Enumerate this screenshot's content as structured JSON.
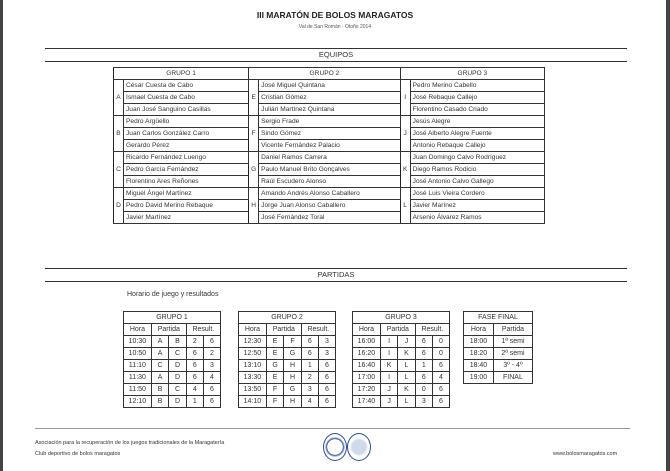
{
  "header": {
    "title": "III MARATÓN DE BOLOS MARAGATOS",
    "subtitle": "Val de San Román · Otoño 2014"
  },
  "equipos": {
    "section_label": "EQUIPOS",
    "groups": [
      {
        "name": "GRUPO 1",
        "teams": [
          {
            "letter": "A",
            "players": [
              "César Cuesta de Cabo",
              "Ismael Cuesta de Cabo",
              "Juan José Sanguino Casillas"
            ]
          },
          {
            "letter": "B",
            "players": [
              "Pedro Argüello",
              "Juan Carlos González Carro",
              "Gerardo Pérez"
            ]
          },
          {
            "letter": "C",
            "players": [
              "Ricardo Fernández Luengo",
              "Pedro García Fernández",
              "Florentino Ares Reñones"
            ]
          },
          {
            "letter": "D",
            "players": [
              "Miguel Ángel Martínez",
              "Pedro David Merino Rebaque",
              "Javier Martínez"
            ]
          }
        ]
      },
      {
        "name": "GRUPO 2",
        "teams": [
          {
            "letter": "E",
            "players": [
              "José Miguel Quintana",
              "Cristian Gómez",
              "Julián Martínez Quintana"
            ]
          },
          {
            "letter": "F",
            "players": [
              "Sergio Frade",
              "Sindo Gómez",
              "Vicente Fernández Palacio"
            ]
          },
          {
            "letter": "G",
            "players": [
              "Daniel Ramos Carrera",
              "Paulo Manuel Brito Gonçalves",
              "Raúl Escudero Alonso"
            ]
          },
          {
            "letter": "H",
            "players": [
              "Amando Andrés Alonso Caballero",
              "Jorge Juan Alonso Caballero",
              "José Fernández Toral"
            ]
          }
        ]
      },
      {
        "name": "GRUPO 3",
        "teams": [
          {
            "letter": "I",
            "players": [
              "Pedro Merino Cabello",
              "José Rebaque Callejo",
              "Florentino Casado Criado"
            ]
          },
          {
            "letter": "J",
            "players": [
              "Jesús Alegre",
              "José Alberto Alegre Fuente",
              "Antonio Rebaque Callejo"
            ]
          },
          {
            "letter": "K",
            "players": [
              "Juan Domingo Calvo Rodríguez",
              "Diego Ramos Rodicio",
              "José Antonio Calvo Gallego"
            ]
          },
          {
            "letter": "L",
            "players": [
              "José Luis Vieira Cordero",
              "Javier Marínez",
              "Arsenio Álvarez Ramos"
            ]
          }
        ]
      }
    ]
  },
  "partidas": {
    "section_label": "PARTIDAS",
    "note": "Horario de juego y resultados",
    "columns": {
      "hora": "Hora",
      "partida": "Partida",
      "result": "Result."
    },
    "groups": [
      {
        "name": "GRUPO 1",
        "matches": [
          [
            "10:30",
            "A",
            "B",
            "2",
            "6"
          ],
          [
            "10:50",
            "A",
            "C",
            "6",
            "2"
          ],
          [
            "11:10",
            "C",
            "D",
            "6",
            "3"
          ],
          [
            "11:30",
            "A",
            "D",
            "6",
            "4"
          ],
          [
            "11:50",
            "B",
            "C",
            "4",
            "6"
          ],
          [
            "12:10",
            "B",
            "D",
            "1",
            "6"
          ]
        ]
      },
      {
        "name": "GRUPO 2",
        "matches": [
          [
            "12:30",
            "E",
            "F",
            "6",
            "3"
          ],
          [
            "12:50",
            "E",
            "G",
            "6",
            "3"
          ],
          [
            "13:10",
            "G",
            "H",
            "1",
            "6"
          ],
          [
            "13:30",
            "E",
            "H",
            "2",
            "6"
          ],
          [
            "13:50",
            "F",
            "G",
            "3",
            "6"
          ],
          [
            "14:10",
            "F",
            "H",
            "4",
            "6"
          ]
        ]
      },
      {
        "name": "GRUPO 3",
        "matches": [
          [
            "16:00",
            "I",
            "J",
            "6",
            "0"
          ],
          [
            "16:20",
            "I",
            "K",
            "6",
            "0"
          ],
          [
            "16:40",
            "K",
            "L",
            "1",
            "6"
          ],
          [
            "17:00",
            "I",
            "L",
            "6",
            "4"
          ],
          [
            "17:20",
            "J",
            "K",
            "0",
            "6"
          ],
          [
            "17:40",
            "J",
            "L",
            "3",
            "6"
          ]
        ]
      }
    ],
    "final": {
      "name": "FASE FINAL",
      "rows": [
        [
          "18:00",
          "1ª semi"
        ],
        [
          "18:20",
          "2ª semi"
        ],
        [
          "18:40",
          "3º - 4º"
        ],
        [
          "19:00",
          "FINAL"
        ]
      ]
    }
  },
  "footer": {
    "line1": "Asociación para la recuperación de los juegos tradicionales de la Maragatería",
    "line2": "Club deportivo de bolos maragatos",
    "url": "www.bolosmaragatos.com",
    "logos": [
      "federation-logo",
      "club-logo"
    ]
  }
}
